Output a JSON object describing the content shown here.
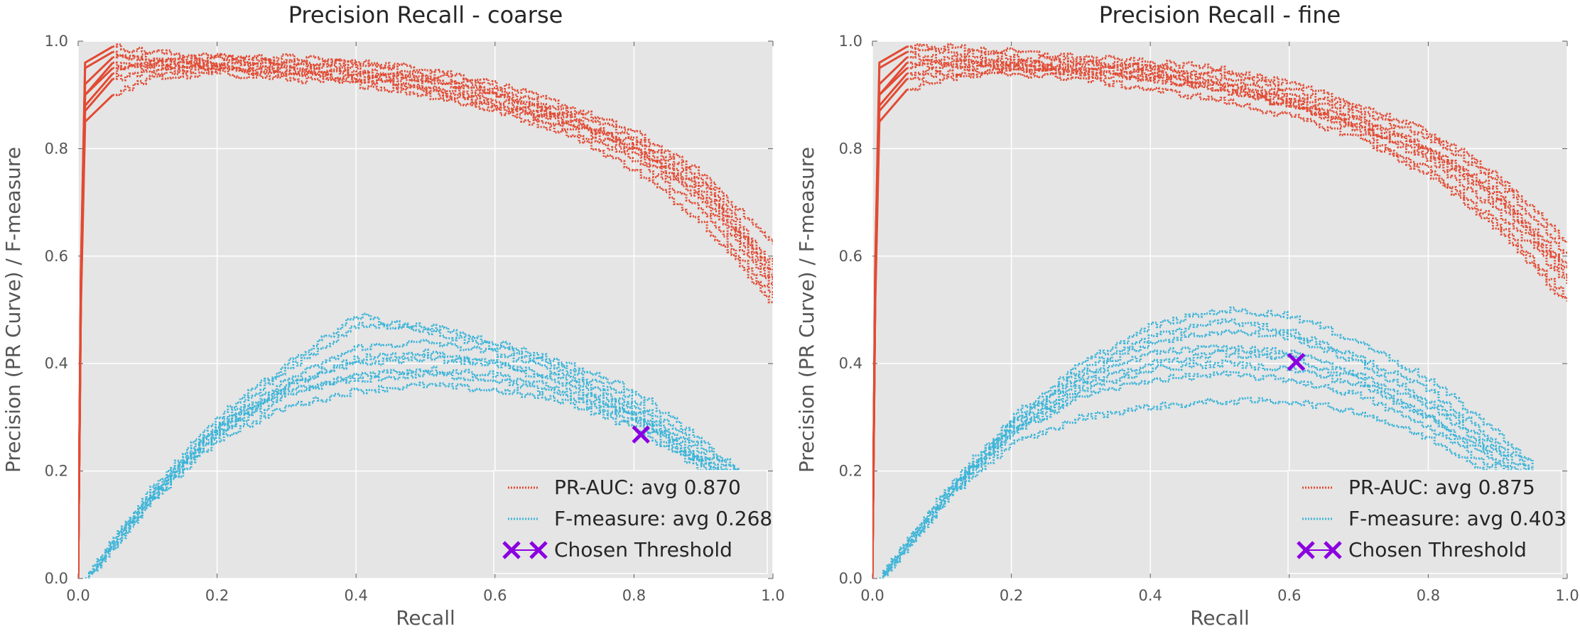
{
  "chart_data": [
    {
      "type": "line",
      "title": "Precision Recall - coarse",
      "xlabel": "Recall",
      "ylabel": "Precision (PR Curve) / F-measure",
      "xlim": [
        0.0,
        1.0
      ],
      "ylim": [
        0.0,
        1.0
      ],
      "xticks": [
        "0.0",
        "0.2",
        "0.4",
        "0.6",
        "0.8",
        "1.0"
      ],
      "yticks": [
        "0.0",
        "0.2",
        "0.4",
        "0.6",
        "0.8",
        "1.0"
      ],
      "grid": true,
      "legend_position": "lower right",
      "legend": [
        {
          "label": "PR-AUC: avg 0.870",
          "kind": "pr"
        },
        {
          "label": "F-measure: avg 0.268",
          "kind": "f"
        },
        {
          "label": "Chosen Threshold",
          "kind": "threshold"
        }
      ],
      "series": [
        {
          "kind": "pr",
          "x": [
            0.0,
            0.01,
            0.05,
            0.1,
            0.2,
            0.3,
            0.4,
            0.5,
            0.6,
            0.7,
            0.8,
            0.9,
            1.0
          ],
          "y": [
            0.0,
            0.9,
            0.95,
            0.95,
            0.96,
            0.96,
            0.95,
            0.93,
            0.9,
            0.86,
            0.8,
            0.71,
            0.55
          ]
        },
        {
          "kind": "pr",
          "x": [
            0.0,
            0.01,
            0.05,
            0.1,
            0.2,
            0.3,
            0.4,
            0.5,
            0.6,
            0.7,
            0.8,
            0.9,
            1.0
          ],
          "y": [
            0.0,
            0.95,
            0.98,
            0.96,
            0.95,
            0.94,
            0.93,
            0.91,
            0.88,
            0.84,
            0.78,
            0.68,
            0.52
          ]
        },
        {
          "kind": "pr",
          "x": [
            0.0,
            0.01,
            0.05,
            0.1,
            0.2,
            0.3,
            0.4,
            0.5,
            0.6,
            0.7,
            0.8,
            0.9,
            1.0
          ],
          "y": [
            0.0,
            0.88,
            0.94,
            0.96,
            0.97,
            0.96,
            0.96,
            0.94,
            0.91,
            0.87,
            0.82,
            0.74,
            0.58
          ]
        },
        {
          "kind": "pr",
          "x": [
            0.0,
            0.01,
            0.05,
            0.1,
            0.2,
            0.3,
            0.4,
            0.5,
            0.6,
            0.7,
            0.8,
            0.9,
            1.0
          ],
          "y": [
            0.0,
            0.92,
            0.97,
            0.97,
            0.96,
            0.95,
            0.94,
            0.92,
            0.89,
            0.85,
            0.79,
            0.7,
            0.54
          ]
        },
        {
          "kind": "pr",
          "x": [
            0.0,
            0.01,
            0.05,
            0.1,
            0.2,
            0.3,
            0.4,
            0.5,
            0.6,
            0.7,
            0.8,
            0.9,
            1.0
          ],
          "y": [
            0.0,
            0.85,
            0.9,
            0.93,
            0.94,
            0.93,
            0.92,
            0.9,
            0.87,
            0.83,
            0.76,
            0.66,
            0.51
          ]
        },
        {
          "kind": "pr",
          "x": [
            0.0,
            0.01,
            0.05,
            0.1,
            0.2,
            0.3,
            0.4,
            0.5,
            0.6,
            0.7,
            0.8,
            0.9,
            1.0
          ],
          "y": [
            0.0,
            0.96,
            0.99,
            0.98,
            0.97,
            0.97,
            0.96,
            0.95,
            0.92,
            0.88,
            0.83,
            0.75,
            0.62
          ]
        },
        {
          "kind": "pr",
          "x": [
            0.0,
            0.01,
            0.05,
            0.1,
            0.2,
            0.3,
            0.4,
            0.5,
            0.6,
            0.7,
            0.8,
            0.9,
            1.0
          ],
          "y": [
            0.0,
            0.9,
            0.96,
            0.95,
            0.95,
            0.94,
            0.93,
            0.91,
            0.88,
            0.85,
            0.8,
            0.72,
            0.56
          ]
        },
        {
          "kind": "pr",
          "x": [
            0.0,
            0.01,
            0.05,
            0.1,
            0.2,
            0.3,
            0.4,
            0.5,
            0.6,
            0.7,
            0.8,
            0.9,
            1.0
          ],
          "y": [
            0.0,
            0.87,
            0.93,
            0.94,
            0.95,
            0.95,
            0.94,
            0.93,
            0.9,
            0.86,
            0.81,
            0.73,
            0.57
          ]
        },
        {
          "kind": "f",
          "x": [
            0.01,
            0.05,
            0.1,
            0.15,
            0.2,
            0.3,
            0.4,
            0.5,
            0.6,
            0.7,
            0.8,
            0.9,
            0.95
          ],
          "y": [
            0.0,
            0.07,
            0.15,
            0.22,
            0.28,
            0.36,
            0.41,
            0.42,
            0.4,
            0.36,
            0.3,
            0.22,
            0.18
          ]
        },
        {
          "kind": "f",
          "x": [
            0.01,
            0.05,
            0.1,
            0.15,
            0.2,
            0.3,
            0.4,
            0.5,
            0.6,
            0.7,
            0.8,
            0.9,
            0.95
          ],
          "y": [
            0.0,
            0.07,
            0.15,
            0.22,
            0.29,
            0.39,
            0.47,
            0.47,
            0.44,
            0.4,
            0.35,
            0.25,
            0.2
          ]
        },
        {
          "kind": "f",
          "x": [
            0.01,
            0.05,
            0.1,
            0.15,
            0.2,
            0.3,
            0.4,
            0.5,
            0.6,
            0.7,
            0.8,
            0.9,
            0.95
          ],
          "y": [
            0.0,
            0.06,
            0.14,
            0.2,
            0.26,
            0.32,
            0.35,
            0.36,
            0.35,
            0.33,
            0.28,
            0.2,
            0.16
          ]
        },
        {
          "kind": "f",
          "x": [
            0.01,
            0.05,
            0.1,
            0.15,
            0.2,
            0.3,
            0.4,
            0.5,
            0.6,
            0.7,
            0.8,
            0.9,
            0.95
          ],
          "y": [
            0.0,
            0.07,
            0.15,
            0.22,
            0.28,
            0.37,
            0.43,
            0.44,
            0.42,
            0.38,
            0.32,
            0.23,
            0.19
          ]
        },
        {
          "kind": "f",
          "x": [
            0.01,
            0.05,
            0.1,
            0.15,
            0.2,
            0.3,
            0.4,
            0.5,
            0.6,
            0.7,
            0.8,
            0.9,
            0.95
          ],
          "y": [
            0.0,
            0.06,
            0.14,
            0.21,
            0.27,
            0.34,
            0.38,
            0.39,
            0.38,
            0.35,
            0.3,
            0.21,
            0.17
          ]
        },
        {
          "kind": "f",
          "x": [
            0.01,
            0.05,
            0.1,
            0.15,
            0.2,
            0.3,
            0.4,
            0.5,
            0.6,
            0.7,
            0.8,
            0.9,
            0.95
          ],
          "y": [
            0.0,
            0.07,
            0.16,
            0.23,
            0.3,
            0.4,
            0.49,
            0.46,
            0.43,
            0.39,
            0.33,
            0.24,
            0.2
          ]
        },
        {
          "kind": "f",
          "x": [
            0.01,
            0.05,
            0.1,
            0.15,
            0.2,
            0.3,
            0.4,
            0.5,
            0.6,
            0.7,
            0.8,
            0.9,
            0.95
          ],
          "y": [
            0.0,
            0.07,
            0.15,
            0.22,
            0.28,
            0.36,
            0.4,
            0.41,
            0.4,
            0.37,
            0.31,
            0.22,
            0.17
          ]
        },
        {
          "kind": "f",
          "x": [
            0.01,
            0.05,
            0.1,
            0.15,
            0.2,
            0.3,
            0.4,
            0.5,
            0.6,
            0.7,
            0.8,
            0.9,
            0.95
          ],
          "y": [
            0.0,
            0.06,
            0.14,
            0.21,
            0.27,
            0.35,
            0.37,
            0.38,
            0.37,
            0.34,
            0.29,
            0.21,
            0.17
          ]
        }
      ],
      "threshold": {
        "x": 0.81,
        "y": 0.268
      }
    },
    {
      "type": "line",
      "title": "Precision Recall - fine",
      "xlabel": "Recall",
      "ylabel": "Precision (PR Curve) / F-measure",
      "xlim": [
        0.0,
        1.0
      ],
      "ylim": [
        0.0,
        1.0
      ],
      "xticks": [
        "0.0",
        "0.2",
        "0.4",
        "0.6",
        "0.8",
        "1.0"
      ],
      "yticks": [
        "0.0",
        "0.2",
        "0.4",
        "0.6",
        "0.8",
        "1.0"
      ],
      "grid": true,
      "legend_position": "lower right",
      "legend": [
        {
          "label": "PR-AUC: avg 0.875",
          "kind": "pr"
        },
        {
          "label": "F-measure: avg 0.403",
          "kind": "f"
        },
        {
          "label": "Chosen Threshold",
          "kind": "threshold"
        }
      ],
      "series": [
        {
          "kind": "pr",
          "x": [
            0.0,
            0.01,
            0.05,
            0.1,
            0.2,
            0.3,
            0.4,
            0.5,
            0.6,
            0.7,
            0.8,
            0.9,
            1.0
          ],
          "y": [
            0.0,
            0.9,
            0.95,
            0.96,
            0.96,
            0.95,
            0.94,
            0.92,
            0.89,
            0.84,
            0.78,
            0.68,
            0.55
          ]
        },
        {
          "kind": "pr",
          "x": [
            0.0,
            0.01,
            0.05,
            0.1,
            0.2,
            0.3,
            0.4,
            0.5,
            0.6,
            0.7,
            0.8,
            0.9,
            1.0
          ],
          "y": [
            0.0,
            0.95,
            0.98,
            0.98,
            0.97,
            0.96,
            0.95,
            0.93,
            0.9,
            0.86,
            0.8,
            0.71,
            0.57
          ]
        },
        {
          "kind": "pr",
          "x": [
            0.0,
            0.01,
            0.05,
            0.1,
            0.2,
            0.3,
            0.4,
            0.5,
            0.6,
            0.7,
            0.8,
            0.9,
            1.0
          ],
          "y": [
            0.0,
            0.88,
            0.94,
            0.95,
            0.95,
            0.94,
            0.93,
            0.91,
            0.88,
            0.83,
            0.76,
            0.66,
            0.52
          ]
        },
        {
          "kind": "pr",
          "x": [
            0.0,
            0.01,
            0.05,
            0.1,
            0.2,
            0.3,
            0.4,
            0.5,
            0.6,
            0.7,
            0.8,
            0.9,
            1.0
          ],
          "y": [
            0.0,
            0.92,
            0.97,
            0.97,
            0.96,
            0.96,
            0.95,
            0.94,
            0.91,
            0.87,
            0.82,
            0.74,
            0.6
          ]
        },
        {
          "kind": "pr",
          "x": [
            0.0,
            0.01,
            0.05,
            0.1,
            0.2,
            0.3,
            0.4,
            0.5,
            0.6,
            0.7,
            0.8,
            0.9,
            1.0
          ],
          "y": [
            0.0,
            0.85,
            0.91,
            0.93,
            0.94,
            0.93,
            0.91,
            0.89,
            0.86,
            0.82,
            0.75,
            0.65,
            0.51
          ]
        },
        {
          "kind": "pr",
          "x": [
            0.0,
            0.01,
            0.05,
            0.1,
            0.2,
            0.3,
            0.4,
            0.5,
            0.6,
            0.7,
            0.8,
            0.9,
            1.0
          ],
          "y": [
            0.0,
            0.96,
            0.99,
            0.99,
            0.98,
            0.97,
            0.96,
            0.95,
            0.92,
            0.88,
            0.83,
            0.75,
            0.62
          ]
        },
        {
          "kind": "pr",
          "x": [
            0.0,
            0.01,
            0.05,
            0.1,
            0.2,
            0.3,
            0.4,
            0.5,
            0.6,
            0.7,
            0.8,
            0.9,
            1.0
          ],
          "y": [
            0.0,
            0.9,
            0.96,
            0.96,
            0.95,
            0.94,
            0.93,
            0.91,
            0.88,
            0.84,
            0.79,
            0.7,
            0.56
          ]
        },
        {
          "kind": "pr",
          "x": [
            0.0,
            0.01,
            0.05,
            0.1,
            0.2,
            0.3,
            0.4,
            0.5,
            0.6,
            0.7,
            0.8,
            0.9,
            1.0
          ],
          "y": [
            0.0,
            0.87,
            0.93,
            0.94,
            0.95,
            0.95,
            0.94,
            0.92,
            0.89,
            0.85,
            0.8,
            0.72,
            0.58
          ]
        },
        {
          "kind": "f",
          "x": [
            0.01,
            0.05,
            0.1,
            0.15,
            0.2,
            0.3,
            0.4,
            0.5,
            0.6,
            0.7,
            0.8,
            0.9,
            0.95
          ],
          "y": [
            0.0,
            0.07,
            0.15,
            0.22,
            0.28,
            0.36,
            0.4,
            0.42,
            0.41,
            0.37,
            0.3,
            0.22,
            0.17
          ]
        },
        {
          "kind": "f",
          "x": [
            0.01,
            0.05,
            0.1,
            0.15,
            0.2,
            0.3,
            0.4,
            0.5,
            0.6,
            0.7,
            0.8,
            0.9,
            0.95
          ],
          "y": [
            0.0,
            0.07,
            0.16,
            0.23,
            0.3,
            0.4,
            0.47,
            0.5,
            0.49,
            0.44,
            0.37,
            0.27,
            0.21
          ]
        },
        {
          "kind": "f",
          "x": [
            0.01,
            0.05,
            0.1,
            0.15,
            0.2,
            0.3,
            0.4,
            0.5,
            0.6,
            0.7,
            0.8,
            0.9,
            0.95
          ],
          "y": [
            0.0,
            0.06,
            0.14,
            0.2,
            0.25,
            0.3,
            0.32,
            0.33,
            0.33,
            0.31,
            0.26,
            0.19,
            0.15
          ]
        },
        {
          "kind": "f",
          "x": [
            0.01,
            0.05,
            0.1,
            0.15,
            0.2,
            0.3,
            0.4,
            0.5,
            0.6,
            0.7,
            0.8,
            0.9,
            0.95
          ],
          "y": [
            0.0,
            0.07,
            0.15,
            0.22,
            0.29,
            0.38,
            0.44,
            0.46,
            0.45,
            0.4,
            0.33,
            0.24,
            0.19
          ]
        },
        {
          "kind": "f",
          "x": [
            0.01,
            0.05,
            0.1,
            0.15,
            0.2,
            0.3,
            0.4,
            0.5,
            0.6,
            0.7,
            0.8,
            0.9,
            0.95
          ],
          "y": [
            0.0,
            0.06,
            0.14,
            0.21,
            0.27,
            0.34,
            0.37,
            0.38,
            0.37,
            0.34,
            0.28,
            0.2,
            0.16
          ]
        },
        {
          "kind": "f",
          "x": [
            0.01,
            0.05,
            0.1,
            0.15,
            0.2,
            0.3,
            0.4,
            0.5,
            0.6,
            0.7,
            0.8,
            0.9,
            0.95
          ],
          "y": [
            0.0,
            0.07,
            0.15,
            0.22,
            0.29,
            0.39,
            0.45,
            0.48,
            0.46,
            0.41,
            0.35,
            0.25,
            0.2
          ]
        },
        {
          "kind": "f",
          "x": [
            0.01,
            0.05,
            0.1,
            0.15,
            0.2,
            0.3,
            0.4,
            0.5,
            0.6,
            0.7,
            0.8,
            0.9,
            0.95
          ],
          "y": [
            0.0,
            0.07,
            0.15,
            0.22,
            0.28,
            0.37,
            0.42,
            0.43,
            0.42,
            0.38,
            0.32,
            0.23,
            0.18
          ]
        },
        {
          "kind": "f",
          "x": [
            0.01,
            0.05,
            0.1,
            0.15,
            0.2,
            0.3,
            0.4,
            0.5,
            0.6,
            0.7,
            0.8,
            0.9,
            0.95
          ],
          "y": [
            0.0,
            0.06,
            0.14,
            0.21,
            0.27,
            0.35,
            0.39,
            0.4,
            0.39,
            0.36,
            0.3,
            0.21,
            0.17
          ]
        }
      ],
      "threshold": {
        "x": 0.61,
        "y": 0.403
      }
    }
  ],
  "colors": {
    "pr": "#E24A33",
    "f": "#3CB4D8",
    "threshold": "#8A00E0",
    "plot_background": "#E5E5E5",
    "grid": "#FFFFFF",
    "legend_background": "#E5E5E5"
  }
}
